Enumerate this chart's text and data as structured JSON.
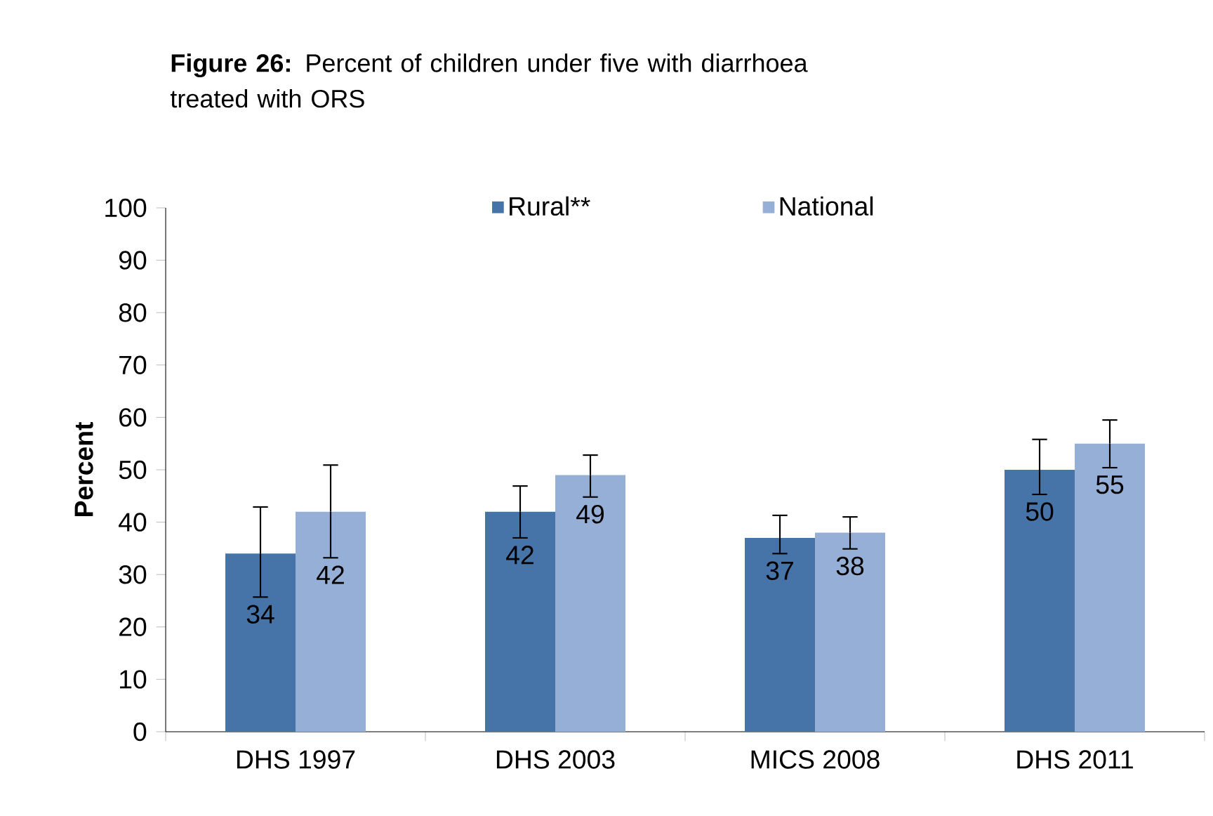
{
  "chart_data": {
    "type": "bar",
    "title": "**Figure 26:** Percent of children under five with diarrhoea treated with ORS",
    "ylabel": "Percent",
    "categories": [
      "DHS 1997",
      "DHS 2003",
      "MICS 2008",
      "DHS 2011"
    ],
    "series": [
      {
        "name": "Rural**",
        "color": "#4674a9",
        "values": [
          34,
          42,
          37,
          50
        ],
        "errors": [
          [
            25.7,
            42.9
          ],
          [
            37.0,
            46.9
          ],
          [
            34.0,
            41.3
          ],
          [
            45.3,
            55.8
          ]
        ]
      },
      {
        "name": "National",
        "color": "#95afd6",
        "values": [
          42,
          49,
          38,
          55
        ],
        "errors": [
          [
            33.2,
            50.9
          ],
          [
            44.8,
            52.8
          ],
          [
            34.9,
            41.0
          ],
          [
            50.4,
            59.5
          ]
        ]
      }
    ],
    "ylim": [
      0,
      100
    ],
    "yticks": [
      0,
      10,
      20,
      30,
      40,
      50,
      60,
      70,
      80,
      90,
      100
    ],
    "data_labels": true,
    "legend": "top",
    "grid": false
  }
}
